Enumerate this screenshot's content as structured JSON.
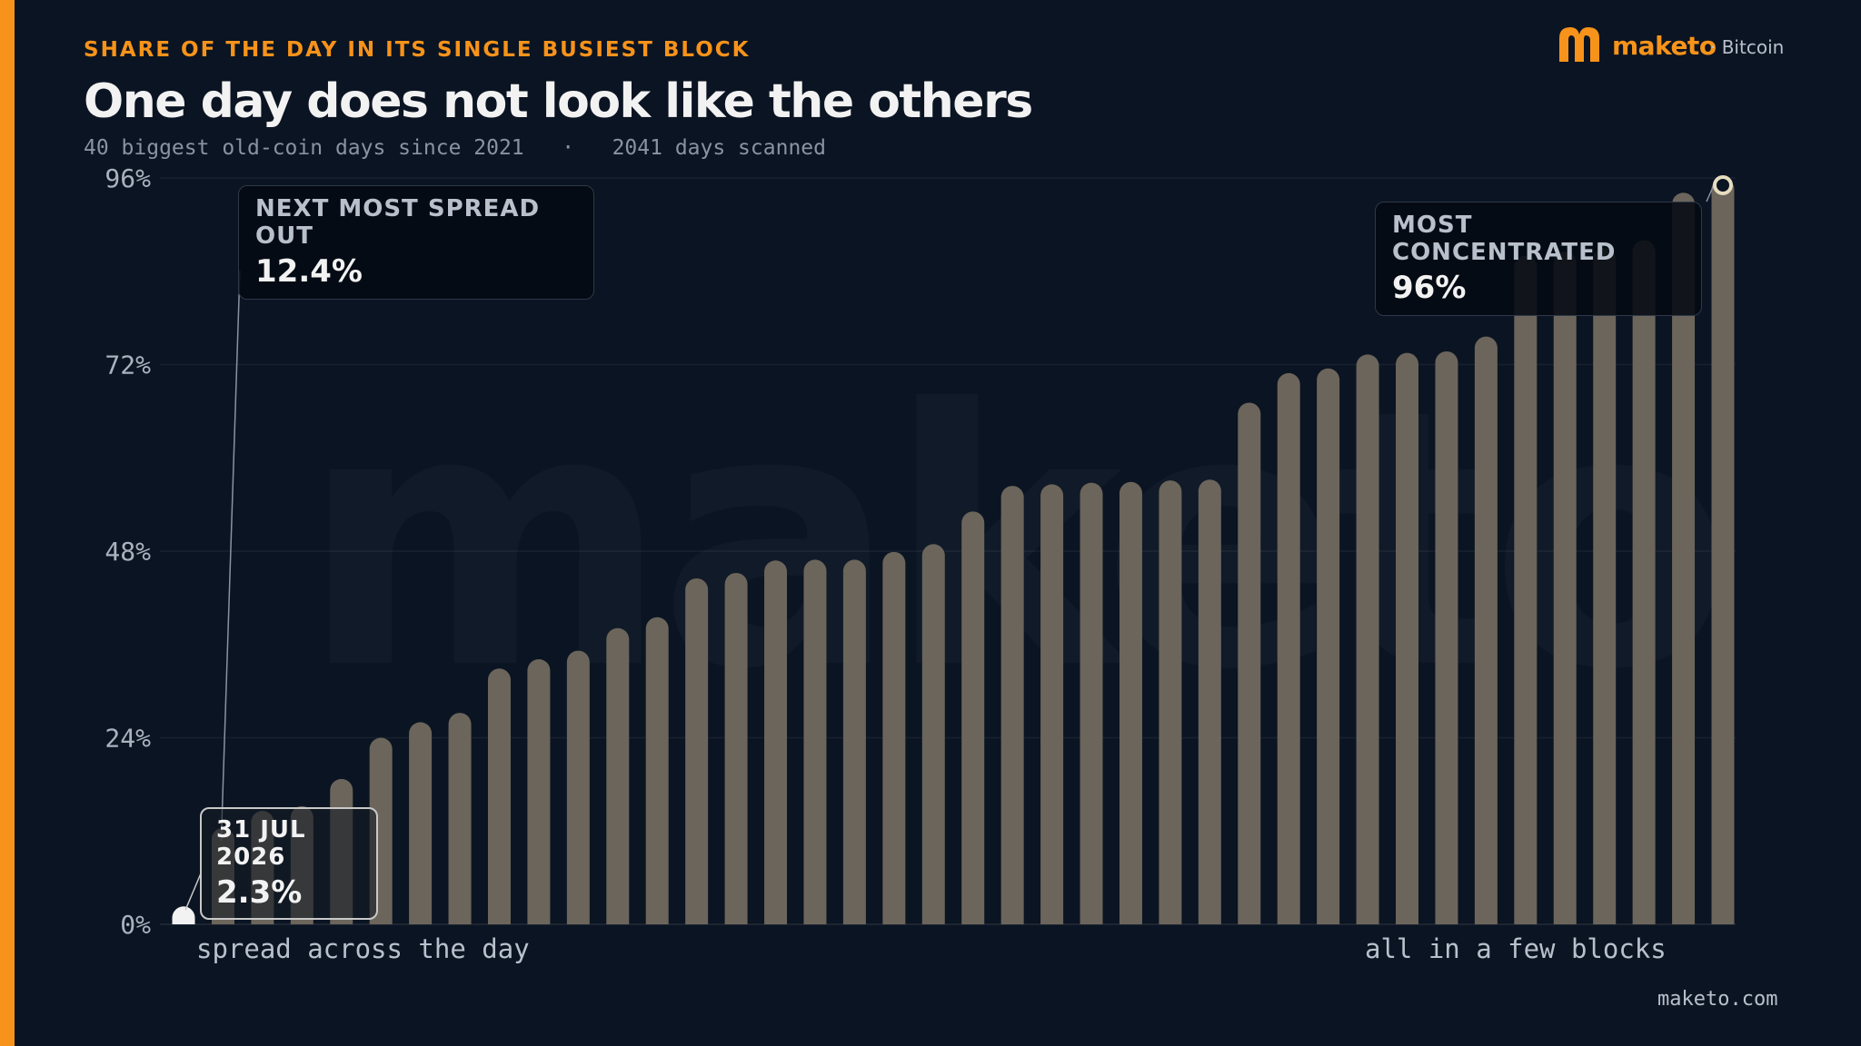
{
  "header": {
    "kicker": "SHARE OF THE DAY IN ITS SINGLE BUSIEST BLOCK",
    "title": "One day does not look like the others",
    "subtitle": "40 biggest old-coin days since 2021   ·   2041 days scanned"
  },
  "brand": {
    "name": "maketo",
    "sub": "· Bitcoin",
    "watermark": "maketo",
    "url": "maketo.com",
    "color": "#f7931a"
  },
  "x_notes": {
    "left": "spread across the day",
    "right": "all in a few blocks"
  },
  "callouts": {
    "next": {
      "label": "NEXT MOST SPREAD OUT",
      "value": "12.4%"
    },
    "max": {
      "label": "MOST CONCENTRATED",
      "value": "96%"
    },
    "highlight": {
      "label": "31 JUL 2026",
      "value": "2.3%"
    }
  },
  "colors": {
    "bar": "#6b655b",
    "highlight": "#f2f2f2",
    "background": "#0b1422"
  },
  "chart_data": {
    "type": "bar",
    "ylim": [
      0,
      96
    ],
    "yticks": [
      0,
      24,
      48,
      72,
      96
    ],
    "ytick_labels": [
      "0%",
      "24%",
      "48%",
      "72%",
      "96%"
    ],
    "grid": true,
    "highlight_index": 0,
    "values": [
      2.3,
      12.4,
      14.6,
      15.2,
      18.7,
      24.0,
      26.0,
      27.2,
      32.9,
      34.1,
      35.2,
      38.1,
      39.5,
      44.5,
      45.2,
      46.8,
      46.9,
      46.9,
      47.9,
      48.9,
      53.1,
      56.4,
      56.6,
      56.8,
      56.9,
      57.1,
      57.2,
      67.1,
      70.9,
      71.5,
      73.3,
      73.5,
      73.7,
      75.6,
      86.0,
      86.5,
      87.0,
      88.0,
      94.1,
      96.0
    ]
  }
}
